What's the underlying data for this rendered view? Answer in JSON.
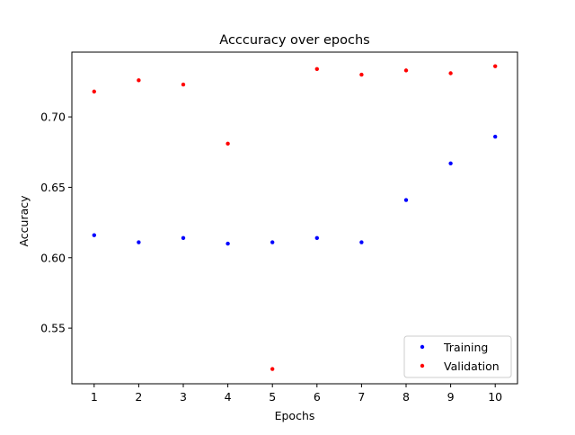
{
  "chart_data": {
    "type": "scatter",
    "title": "Acccuracy over epochs",
    "xlabel": "Epochs",
    "ylabel": "Accuracy",
    "x": [
      1,
      2,
      3,
      4,
      5,
      6,
      7,
      8,
      9,
      10
    ],
    "xticks": [
      1,
      2,
      3,
      4,
      5,
      6,
      7,
      8,
      9,
      10
    ],
    "xlim": [
      0.5,
      10.5
    ],
    "yticks": [
      0.55,
      0.6,
      0.65,
      0.7
    ],
    "ytick_labels": [
      "0.55",
      "0.60",
      "0.65",
      "0.70"
    ],
    "ylim": [
      0.5105,
      0.746
    ],
    "grid": false,
    "legend": "lower-right",
    "series": [
      {
        "name": "Training",
        "color": "#0000ff",
        "values": [
          0.616,
          0.611,
          0.614,
          0.61,
          0.611,
          0.614,
          0.611,
          0.641,
          0.667,
          0.686
        ]
      },
      {
        "name": "Validation",
        "color": "#ff0000",
        "values": [
          0.718,
          0.726,
          0.723,
          0.681,
          0.521,
          0.734,
          0.73,
          0.733,
          0.731,
          0.736
        ]
      }
    ]
  }
}
